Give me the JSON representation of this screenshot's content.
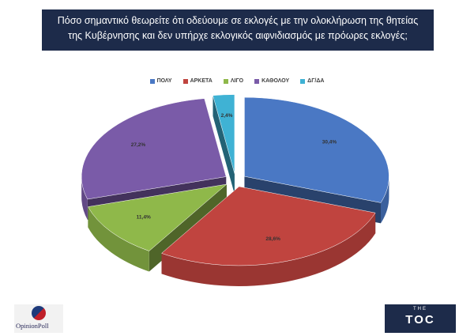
{
  "title": {
    "line1": "Πόσο σημαντικό θεωρείτε ότι οδεύουμε σε εκλογές με την ολοκλήρωση της θητείας",
    "line2": "της Κυβέρνησης και δεν υπήρχε εκλογικός αιφνιδιασμός με πρόωρες εκλογές;"
  },
  "chart_data": {
    "type": "pie",
    "title": "Πόσο σημαντικό θεωρείτε ότι οδεύουμε σε εκλογές με την ολοκλήρωση της θητείας της Κυβέρνησης και δεν υπήρχε εκλογικός αιφνιδιασμός με πρόωρες εκλογές;",
    "categories": [
      "ΠΟΛΥ",
      "ΑΡΚΕΤΑ",
      "ΛΙΓΟ",
      "ΚΑΘΟΛΟΥ",
      "ΔΓ/ΔΑ"
    ],
    "values": [
      30.4,
      28.6,
      11.4,
      27.2,
      2.4
    ],
    "value_labels": [
      "30,4%",
      "28,6%",
      "11,4%",
      "27,2%",
      "2,4%"
    ],
    "colors": [
      "#4a78c4",
      "#c0443f",
      "#8fb84a",
      "#7a5ba8",
      "#3fb2d4"
    ],
    "legend_position": "top",
    "style": "3d-exploded"
  },
  "logos": {
    "left": "OpinionPoll",
    "right_small": "THE",
    "right_big": "TOC"
  }
}
